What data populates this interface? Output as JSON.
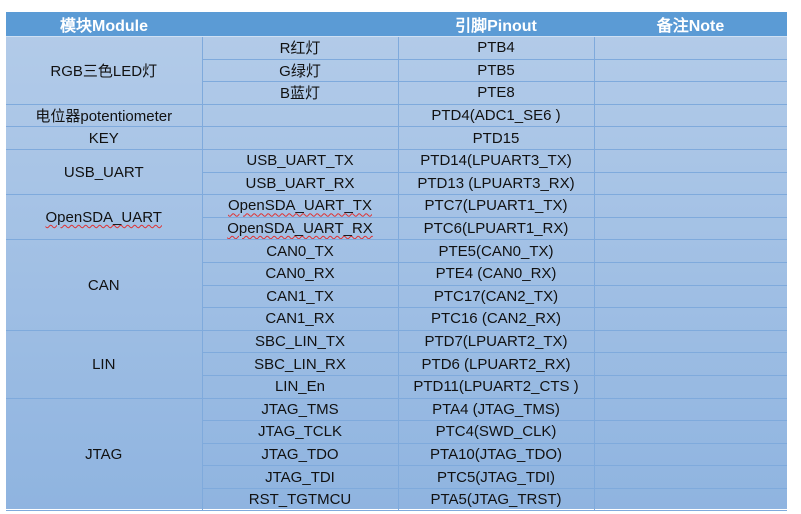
{
  "header": {
    "module": "模块Module",
    "signal": "",
    "pinout": "引脚Pinout",
    "note": "备注Note"
  },
  "colors": {
    "header_bg": "#5b9bd5",
    "cell_top": "#b4cce9",
    "cell_bottom": "#8fb4e0",
    "grid": "#7faadc"
  },
  "groups": [
    {
      "module": "RGB三色LED灯",
      "rows": [
        {
          "signal": "R红灯",
          "pin": "PTB4"
        },
        {
          "signal": "G绿灯",
          "pin": "PTB5"
        },
        {
          "signal": "B蓝灯",
          "pin": "PTE8"
        }
      ]
    },
    {
      "module": "电位器potentiometer",
      "rows": [
        {
          "signal": "",
          "pin": "PTD4(ADC1_SE6 )"
        }
      ]
    },
    {
      "module": "KEY",
      "rows": [
        {
          "signal": "",
          "pin": "PTD15"
        }
      ]
    },
    {
      "module": "USB_UART",
      "rows": [
        {
          "signal": "USB_UART_TX",
          "pin": "PTD14(LPUART3_TX)"
        },
        {
          "signal": "USB_UART_RX",
          "pin": "PTD13 (LPUART3_RX)"
        }
      ]
    },
    {
      "module": "OpenSDA_UART",
      "spell": true,
      "rows": [
        {
          "signal": "OpenSDA_UART_TX",
          "pin": "PTC7(LPUART1_TX)"
        },
        {
          "signal": "OpenSDA_UART_RX",
          "pin": "PTC6(LPUART1_RX)"
        }
      ]
    },
    {
      "module": "CAN",
      "rows": [
        {
          "signal": "CAN0_TX",
          "pin": "PTE5(CAN0_TX)"
        },
        {
          "signal": "CAN0_RX",
          "pin": "PTE4 (CAN0_RX)"
        },
        {
          "signal": "CAN1_TX",
          "pin": "PTC17(CAN2_TX)"
        },
        {
          "signal": "CAN1_RX",
          "pin": "PTC16 (CAN2_RX)"
        }
      ]
    },
    {
      "module": "LIN",
      "rows": [
        {
          "signal": "SBC_LIN_TX",
          "pin": "PTD7(LPUART2_TX)"
        },
        {
          "signal": "SBC_LIN_RX",
          "pin": "PTD6 (LPUART2_RX)"
        },
        {
          "signal": "LIN_En",
          "pin": "PTD11(LPUART2_CTS )"
        }
      ]
    },
    {
      "module": "JTAG",
      "rows": [
        {
          "signal": "JTAG_TMS",
          "pin": "PTA4 (JTAG_TMS)"
        },
        {
          "signal": "JTAG_TCLK",
          "pin": "PTC4(SWD_CLK)"
        },
        {
          "signal": "JTAG_TDO",
          "pin": "PTA10(JTAG_TDO)"
        },
        {
          "signal": "JTAG_TDI",
          "pin": "PTC5(JTAG_TDI)"
        },
        {
          "signal": "RST_TGTMCU",
          "pin": "PTA5(JTAG_TRST)"
        }
      ]
    }
  ]
}
